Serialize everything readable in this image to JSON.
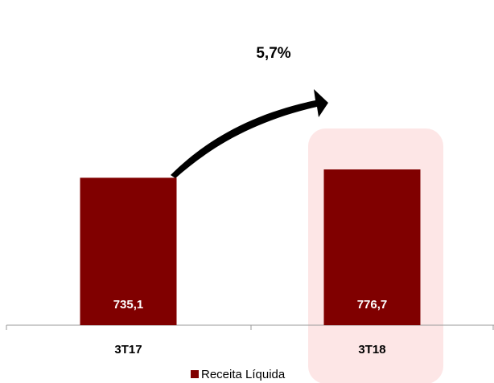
{
  "chart_data": {
    "type": "bar",
    "categories": [
      "3T17",
      "3T18"
    ],
    "series": [
      {
        "name": "Receita Líquida",
        "color": "#800000",
        "values": [
          735.1,
          776.7
        ],
        "value_labels": [
          "735,1",
          "776,7"
        ]
      }
    ],
    "annotations": [
      "5,7%"
    ]
  }
}
